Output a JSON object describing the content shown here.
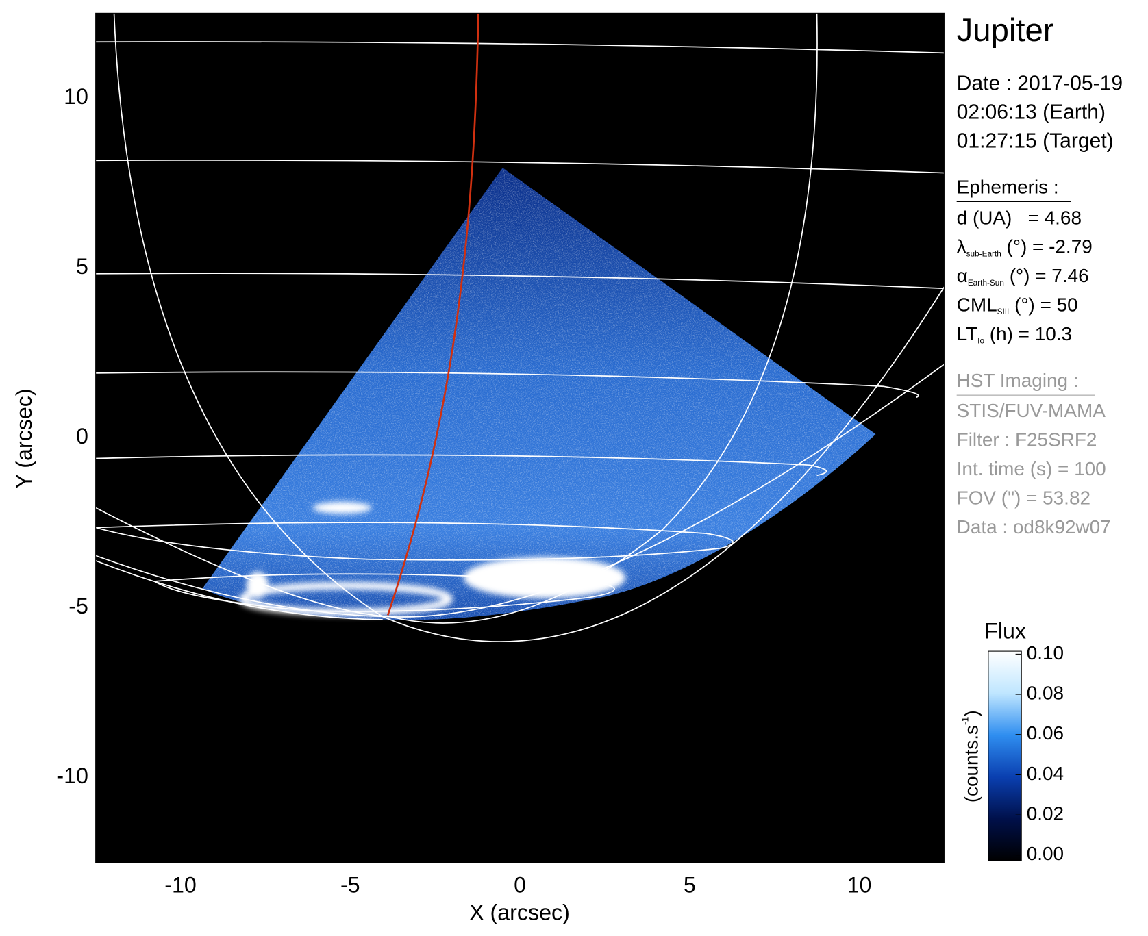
{
  "chart_data": {
    "type": "image",
    "xlabel": "X (arcsec)",
    "ylabel": "Y (arcsec)",
    "xlim": [
      -12.5,
      12.5
    ],
    "ylim": [
      -12.5,
      12.5
    ],
    "xticks": [
      -10,
      -5,
      0,
      5,
      10
    ],
    "yticks": [
      -10,
      -5,
      0,
      5,
      10
    ],
    "colorbar": {
      "title": "Flux",
      "label": "(counts.s",
      "label_sup": "-1",
      "label_end": ")",
      "clim": [
        0,
        0.1
      ],
      "ticks": [
        {
          "value": 0,
          "label": "0.00"
        },
        0.02,
        0.04,
        0.06,
        0.08,
        {
          "value": 0.1,
          "label": "0.10"
        }
      ],
      "colors": [
        "#000000",
        "#00104a",
        "#0a3fb0",
        "#2f8ef0",
        "#bfe6ff",
        "#ffffff"
      ]
    }
  },
  "info": {
    "target": "Jupiter",
    "date": [
      "Date : 2017-05-19",
      "02:06:13 (Earth)",
      "01:27:15 (Target)"
    ],
    "ephemeris": {
      "heading": "Ephemeris :",
      "rows": [
        {
          "main": "d (UA)",
          "rest": "   = 4.68"
        },
        {
          "main": "λ",
          "sub": "sub-Earth",
          "rest": " (°) = -2.79"
        },
        {
          "main": "α",
          "sub": "Earth-Sun",
          "rest": " (°) = 7.46"
        },
        {
          "main": "CML",
          "sub": "SIII",
          "rest": " (°) = 50"
        },
        {
          "main": "LT",
          "sub": "Io",
          "rest": " (h) = 10.3"
        }
      ]
    },
    "hst": {
      "heading": "HST Imaging :",
      "lines": [
        "STIS/FUV-MAMA",
        "Filter : F25SRF2",
        "Int. time (s) = 100",
        "FOV (\") = 53.82",
        "Data : od8k92w07"
      ]
    }
  }
}
